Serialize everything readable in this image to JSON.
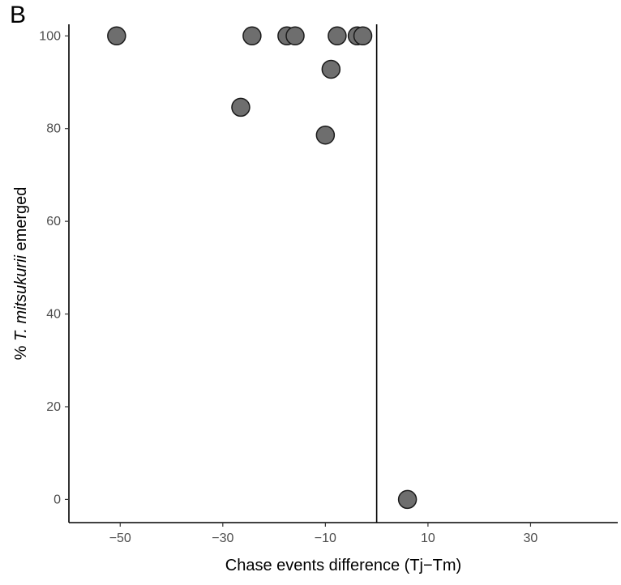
{
  "panel_label": "B",
  "chart_data": {
    "type": "scatter",
    "title": "",
    "xlabel": "Chase events difference (Tj−Tm)",
    "ylabel_prefix": "% ",
    "ylabel_italic": "T. mitsukurii",
    "ylabel_suffix": " emerged",
    "xlim": [
      -60,
      47
    ],
    "ylim": [
      -5,
      102.5
    ],
    "xticks": [
      -50,
      -30,
      -10,
      10,
      30
    ],
    "xtick_labels": [
      "−50",
      "−30",
      "−10",
      "10",
      "30"
    ],
    "yticks": [
      0,
      20,
      40,
      60,
      80,
      100
    ],
    "ytick_labels": [
      "0",
      "20",
      "40",
      "60",
      "80",
      "100"
    ],
    "reference_line_x": 0,
    "grid": false,
    "point_color": "#6e6e6e",
    "point_edge_color": "#1a1a1a",
    "points": [
      {
        "x": -50.7,
        "y": 100
      },
      {
        "x": -24.3,
        "y": 100
      },
      {
        "x": -17.5,
        "y": 100
      },
      {
        "x": -15.9,
        "y": 100
      },
      {
        "x": -7.7,
        "y": 100
      },
      {
        "x": -3.8,
        "y": 100
      },
      {
        "x": -2.7,
        "y": 100
      },
      {
        "x": -8.9,
        "y": 92.8
      },
      {
        "x": -26.5,
        "y": 84.6
      },
      {
        "x": -10.0,
        "y": 78.6
      },
      {
        "x": 6.0,
        "y": 0
      }
    ]
  }
}
